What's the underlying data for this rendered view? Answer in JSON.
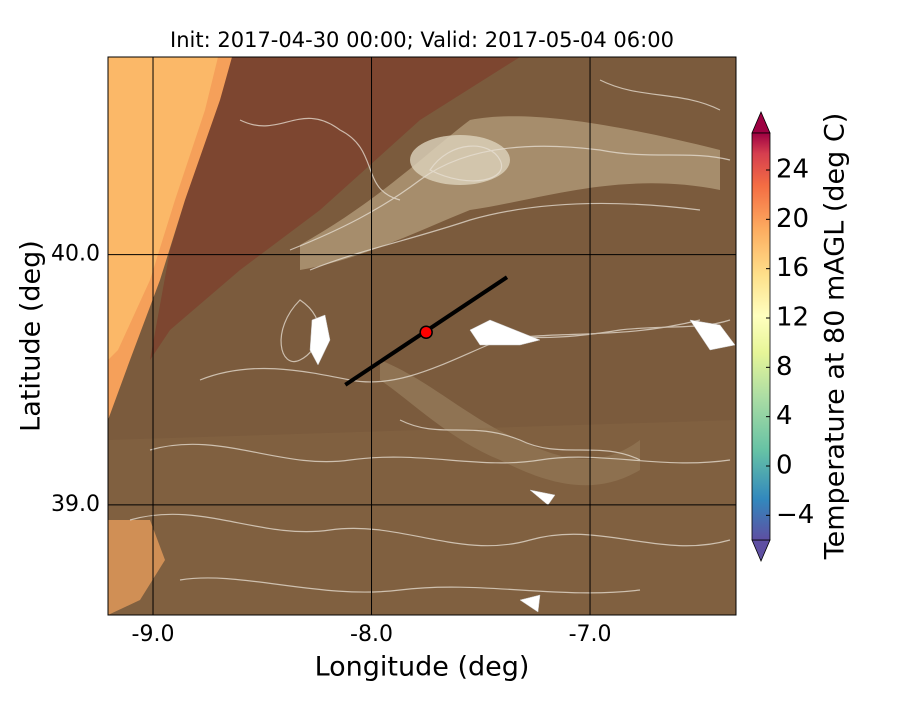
{
  "chart_data": {
    "type": "map",
    "title": "Init: 2017-04-30 00:00; Valid: 2017-05-04 06:00",
    "x_label": "Longitude (deg)",
    "y_label": "Latitude (deg)",
    "xlim": [
      -9.206,
      -6.332
    ],
    "ylim": [
      38.56,
      40.79
    ],
    "xticks": [
      {
        "value": -9,
        "label": "-9.0"
      },
      {
        "value": -8,
        "label": "-8.0"
      },
      {
        "value": -7,
        "label": "-7.0"
      }
    ],
    "yticks": [
      {
        "value": 39,
        "label": "39.0"
      },
      {
        "value": 40,
        "label": "40.0"
      }
    ],
    "grid": true,
    "transect": {
      "start": [
        -8.12,
        39.48
      ],
      "end": [
        -7.38,
        39.91
      ]
    },
    "point": [
      -7.75,
      39.69
    ],
    "colorbar": {
      "label": "Temperature at 80 mAGL (deg C)",
      "clim": [
        -6,
        27
      ],
      "ticks": [
        {
          "value": -4,
          "label": "−4"
        },
        0,
        4,
        8,
        12,
        16,
        20,
        24
      ]
    }
  }
}
